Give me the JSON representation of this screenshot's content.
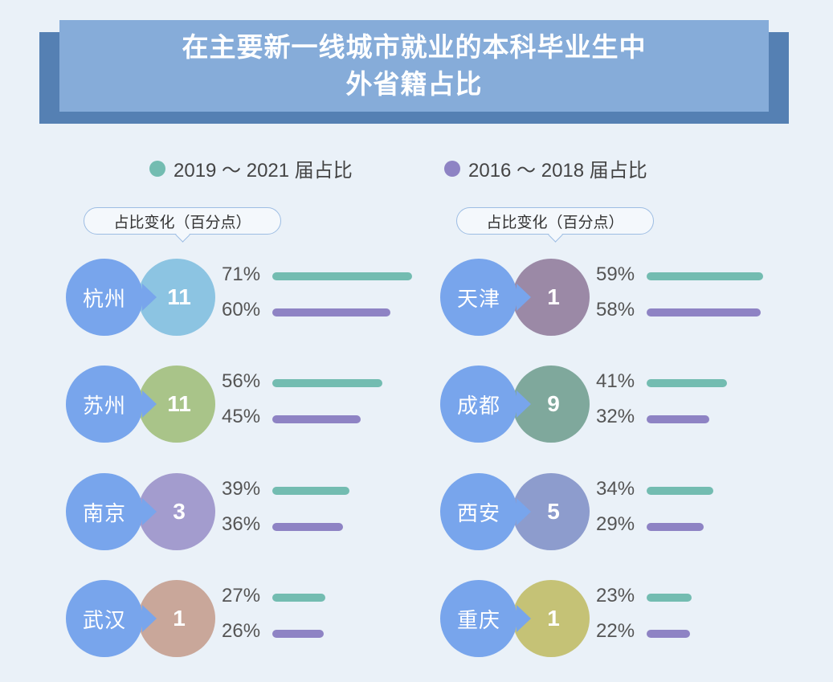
{
  "title": {
    "line1": "在主要新一线城市就业的本科毕业生中",
    "line2": "外省籍占比"
  },
  "legend": [
    {
      "label": "2019 ～ 2021 届占比",
      "color": "#73bcb1"
    },
    {
      "label": "2016 ～ 2018 届占比",
      "color": "#8e83c4"
    }
  ],
  "callout_label": "占比变化（百分点）",
  "colors": {
    "city_badge": "#78a5ec",
    "recent_bar": "#73bcb1",
    "earlier_bar": "#8e83c4"
  },
  "chart_data": {
    "type": "bar",
    "title": "在主要新一线城市就业的本科毕业生中外省籍占比",
    "series": [
      {
        "name": "2019 ～ 2021 届占比",
        "unit": "%"
      },
      {
        "name": "2016 ～ 2018 届占比",
        "unit": "%"
      }
    ],
    "columns": [
      [
        {
          "city": "杭州",
          "change": "11",
          "recent": 71,
          "earlier": 60,
          "color": "#8cc4e2"
        },
        {
          "city": "苏州",
          "change": "11",
          "recent": 56,
          "earlier": 45,
          "color": "#a9c489"
        },
        {
          "city": "南京",
          "change": "3",
          "recent": 39,
          "earlier": 36,
          "color": "#a39cce"
        },
        {
          "city": "武汉",
          "change": "1",
          "recent": 27,
          "earlier": 26,
          "color": "#c9a79a"
        }
      ],
      [
        {
          "city": "天津",
          "change": "1",
          "recent": 59,
          "earlier": 58,
          "color": "#9b89a6"
        },
        {
          "city": "成都",
          "change": "9",
          "recent": 41,
          "earlier": 32,
          "color": "#7fa89c"
        },
        {
          "city": "西安",
          "change": "5",
          "recent": 34,
          "earlier": 29,
          "color": "#8d9ccd"
        },
        {
          "city": "重庆",
          "change": "1",
          "recent": 23,
          "earlier": 22,
          "color": "#c5c276"
        }
      ]
    ]
  }
}
